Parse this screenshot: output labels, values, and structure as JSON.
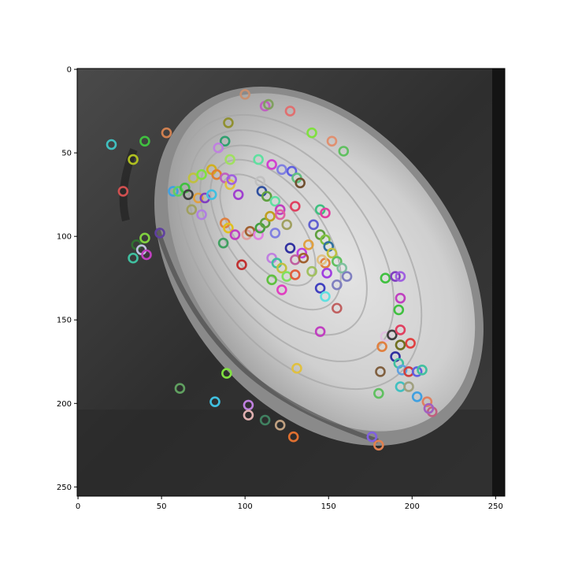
{
  "figure": {
    "background": "#ffffff",
    "image_description_colors": {
      "dark_background": "#2b2b2b",
      "shell_light": "#d6d6d6"
    }
  },
  "axes": {
    "x_ticks": [
      "0",
      "50",
      "100",
      "150",
      "200",
      "250"
    ],
    "y_ticks": [
      "0",
      "50",
      "100",
      "150",
      "200",
      "250"
    ],
    "xlim": [
      0,
      256
    ],
    "ylim": [
      256,
      0
    ]
  },
  "chart_data": {
    "type": "scatter",
    "xlim": [
      -0.5,
      255.5
    ],
    "ylim": [
      255.5,
      -0.5
    ],
    "xticks": [
      0,
      50,
      100,
      150,
      200,
      250
    ],
    "yticks": [
      0,
      50,
      100,
      150,
      200,
      250
    ],
    "marker": "hollow-circle",
    "points": [
      [
        100,
        15,
        "#c89070"
      ],
      [
        112,
        22,
        "#c060c0"
      ],
      [
        114,
        21,
        "#80a060"
      ],
      [
        127,
        25,
        "#e07070"
      ],
      [
        90,
        32,
        "#909030"
      ],
      [
        53,
        38,
        "#d08050"
      ],
      [
        40,
        43,
        "#40c040"
      ],
      [
        20,
        45,
        "#40c0c0"
      ],
      [
        88,
        43,
        "#30a070"
      ],
      [
        140,
        38,
        "#80e040"
      ],
      [
        152,
        43,
        "#e09070"
      ],
      [
        159,
        49,
        "#60c060"
      ],
      [
        33,
        54,
        "#b0c020"
      ],
      [
        84,
        47,
        "#c080e0"
      ],
      [
        91,
        54,
        "#a0e060"
      ],
      [
        108,
        54,
        "#60e0a0"
      ],
      [
        116,
        57,
        "#d040d0"
      ],
      [
        122,
        60,
        "#8080e0"
      ],
      [
        128,
        61,
        "#6060e0"
      ],
      [
        131,
        65,
        "#60c080"
      ],
      [
        133,
        68,
        "#705030"
      ],
      [
        27,
        73,
        "#d05050"
      ],
      [
        57,
        73,
        "#40a0e0"
      ],
      [
        60,
        73,
        "#60d060"
      ],
      [
        64,
        71,
        "#40c040"
      ],
      [
        69,
        65,
        "#c0c040"
      ],
      [
        74,
        63,
        "#80e040"
      ],
      [
        80,
        60,
        "#d0b020"
      ],
      [
        83,
        63,
        "#e08030"
      ],
      [
        88,
        65,
        "#c060c0"
      ],
      [
        91,
        69,
        "#e0c040"
      ],
      [
        92,
        66,
        "#a060e0"
      ],
      [
        66,
        75,
        "#404040"
      ],
      [
        72,
        77,
        "#e0a040"
      ],
      [
        76,
        77,
        "#8040c0"
      ],
      [
        80,
        75,
        "#40c0e0"
      ],
      [
        68,
        84,
        "#a0a060"
      ],
      [
        74,
        87,
        "#b080e0"
      ],
      [
        96,
        75,
        "#a040d0"
      ],
      [
        109,
        67,
        "#c0c0c0"
      ],
      [
        110,
        73,
        "#3050a0"
      ],
      [
        113,
        76,
        "#60a040"
      ],
      [
        118,
        79,
        "#60e0a0"
      ],
      [
        121,
        84,
        "#c040c0"
      ],
      [
        121,
        87,
        "#e060a0"
      ],
      [
        130,
        82,
        "#e04060"
      ],
      [
        145,
        84,
        "#40c080"
      ],
      [
        148,
        86,
        "#e040a0"
      ],
      [
        88,
        92,
        "#e08040"
      ],
      [
        90,
        95,
        "#e0c020"
      ],
      [
        94,
        99,
        "#c040c0"
      ],
      [
        101,
        99,
        "#e0a0a0"
      ],
      [
        103,
        97,
        "#a06030"
      ],
      [
        108,
        99,
        "#e080e0"
      ],
      [
        109,
        95,
        "#40a040"
      ],
      [
        112,
        92,
        "#60a040"
      ],
      [
        115,
        88,
        "#c0a020"
      ],
      [
        118,
        98,
        "#8080e0"
      ],
      [
        125,
        93,
        "#a0a060"
      ],
      [
        49,
        98,
        "#6040a0"
      ],
      [
        35,
        105,
        "#307030"
      ],
      [
        40,
        101,
        "#80d040"
      ],
      [
        38,
        108,
        "#c0c0e0"
      ],
      [
        41,
        111,
        "#c040c0"
      ],
      [
        33,
        113,
        "#40c0a0"
      ],
      [
        87,
        104,
        "#40a060"
      ],
      [
        98,
        117,
        "#c03030"
      ],
      [
        141,
        93,
        "#6060d0"
      ],
      [
        145,
        99,
        "#60a040"
      ],
      [
        148,
        102,
        "#80c040"
      ],
      [
        150,
        106,
        "#3070a0"
      ],
      [
        152,
        110,
        "#c0c040"
      ],
      [
        138,
        105,
        "#e0a040"
      ],
      [
        134,
        110,
        "#c040e0"
      ],
      [
        130,
        114,
        "#c060a0"
      ],
      [
        135,
        113,
        "#a06030"
      ],
      [
        148,
        116,
        "#e08040"
      ],
      [
        146,
        114,
        "#e0c080"
      ],
      [
        155,
        115,
        "#60c060"
      ],
      [
        158,
        119,
        "#80c0a0"
      ],
      [
        161,
        124,
        "#8080c0"
      ],
      [
        116,
        113,
        "#c080e0"
      ],
      [
        119,
        116,
        "#40c0a0"
      ],
      [
        122,
        119,
        "#c0c040"
      ],
      [
        125,
        124,
        "#80e060"
      ],
      [
        130,
        123,
        "#e06040"
      ],
      [
        140,
        121,
        "#a0c060"
      ],
      [
        149,
        122,
        "#a040e0"
      ],
      [
        155,
        129,
        "#8080c0"
      ],
      [
        145,
        131,
        "#4040c0"
      ],
      [
        148,
        136,
        "#60e0e0"
      ],
      [
        155,
        143,
        "#c06060"
      ],
      [
        116,
        126,
        "#60c040"
      ],
      [
        122,
        132,
        "#e040c0"
      ],
      [
        127,
        107,
        "#3030a0"
      ],
      [
        184,
        125,
        "#40c040"
      ],
      [
        190,
        124,
        "#8040c0"
      ],
      [
        193,
        124,
        "#a060e0"
      ],
      [
        193,
        137,
        "#c040c0"
      ],
      [
        192,
        144,
        "#40c040"
      ],
      [
        145,
        157,
        "#c040c0"
      ],
      [
        184,
        160,
        "#e0c0e0"
      ],
      [
        188,
        159,
        "#404040"
      ],
      [
        193,
        156,
        "#e04060"
      ],
      [
        199,
        164,
        "#e04040"
      ],
      [
        182,
        166,
        "#e08040"
      ],
      [
        193,
        165,
        "#707020"
      ],
      [
        190,
        172,
        "#3030a0"
      ],
      [
        192,
        176,
        "#40c0a0"
      ],
      [
        194,
        180,
        "#60a0e0"
      ],
      [
        181,
        181,
        "#806040"
      ],
      [
        198,
        181,
        "#d04040"
      ],
      [
        203,
        181,
        "#6060e0"
      ],
      [
        206,
        180,
        "#40c0a0"
      ],
      [
        180,
        194,
        "#60c060"
      ],
      [
        193,
        190,
        "#40c0c0"
      ],
      [
        198,
        190,
        "#a0a080"
      ],
      [
        203,
        196,
        "#40a0e0"
      ],
      [
        209,
        199,
        "#e08060"
      ],
      [
        212,
        205,
        "#c06080"
      ],
      [
        210,
        203,
        "#a060c0"
      ],
      [
        89,
        182,
        "#80e040"
      ],
      [
        131,
        179,
        "#e0c040"
      ],
      [
        61,
        191,
        "#60a060"
      ],
      [
        82,
        199,
        "#40c0e0"
      ],
      [
        102,
        201,
        "#c080e0"
      ],
      [
        102,
        207,
        "#e0b0b0"
      ],
      [
        112,
        210,
        "#408060"
      ],
      [
        121,
        213,
        "#c0a080"
      ],
      [
        129,
        220,
        "#e07030"
      ],
      [
        176,
        220,
        "#8060e0"
      ],
      [
        180,
        225,
        "#e08050"
      ]
    ]
  }
}
